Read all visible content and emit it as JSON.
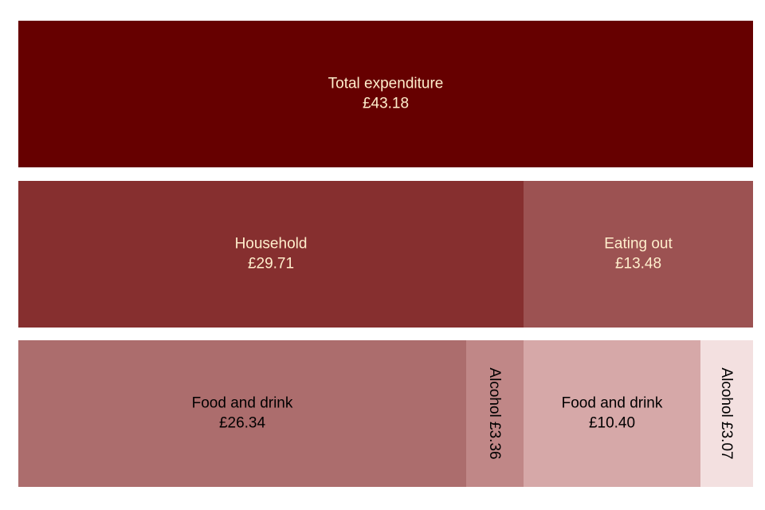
{
  "chart_data": {
    "type": "treemap",
    "title": "",
    "levels": [
      [
        {
          "label": "Total expenditure",
          "value_label": "£43.18",
          "value": 43.18,
          "color": "#660000",
          "text_color": "#ffeecc",
          "orientation": "horizontal"
        }
      ],
      [
        {
          "label": "Household",
          "value_label": "£29.71",
          "value": 29.71,
          "color": "#862f2f",
          "text_color": "#ffeecc",
          "orientation": "horizontal"
        },
        {
          "label": "Eating out",
          "value_label": "£13.48",
          "value": 13.48,
          "color": "#9c5252",
          "text_color": "#ffeecc",
          "orientation": "horizontal"
        }
      ],
      [
        {
          "label": "Food and drink",
          "value_label": "£26.34",
          "value": 26.34,
          "color": "#ac6d6d",
          "text_color": "#000000",
          "orientation": "horizontal"
        },
        {
          "label": "Alcohol",
          "value_label": "£3.36",
          "value": 3.36,
          "color": "#c08787",
          "text_color": "#000000",
          "orientation": "vertical"
        },
        {
          "label": "Food and drink",
          "value_label": "£10.40",
          "value": 10.4,
          "color": "#d6a8a8",
          "text_color": "#000000",
          "orientation": "horizontal"
        },
        {
          "label": "Alcohol",
          "value_label": "£3.07",
          "value": 3.07,
          "color": "#f3e0e0",
          "text_color": "#000000",
          "orientation": "vertical"
        }
      ]
    ]
  }
}
